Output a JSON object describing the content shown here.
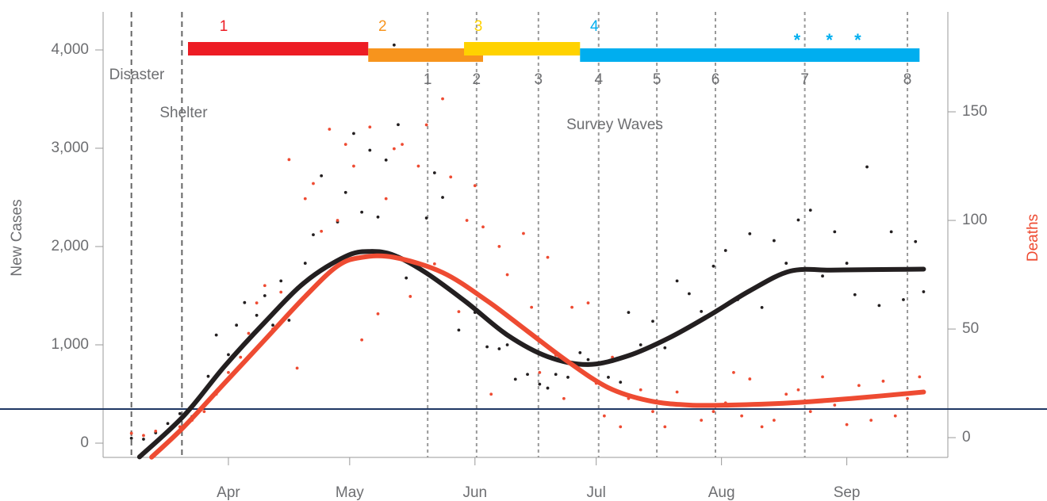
{
  "chart_data": {
    "type": "scatter",
    "ylabel": "New Cases",
    "y2label": "Deaths",
    "y2label_color": "#ee4b32",
    "xlim": [
      0,
      209
    ],
    "xticks": [
      {
        "value": 31,
        "label": "Apr"
      },
      {
        "value": 61,
        "label": "May"
      },
      {
        "value": 92,
        "label": "Jun"
      },
      {
        "value": 122,
        "label": "Jul"
      },
      {
        "value": 153,
        "label": "Aug"
      },
      {
        "value": 184,
        "label": "Sep"
      }
    ],
    "ylim": [
      -145,
      4387
    ],
    "yticks": [
      0,
      {
        "value": 1000,
        "label": "1,000"
      },
      {
        "value": 2000,
        "label": "2,000"
      },
      {
        "value": 3000,
        "label": "3,000"
      },
      {
        "value": 4000,
        "label": "4,000"
      }
    ],
    "y2lim": [
      -9.1,
      196
    ],
    "y2ticks": [
      0,
      50,
      100,
      150
    ],
    "hline": {
      "value": 347,
      "color": "#1f3864"
    },
    "events": [
      {
        "label": "Disaster",
        "x": 7
      },
      {
        "label": "Shelter",
        "x": 19.5
      }
    ],
    "waves_title": "Survey Waves",
    "waves": [
      {
        "label": "1",
        "x": 80.3
      },
      {
        "label": "2",
        "x": 92.4
      },
      {
        "label": "3",
        "x": 107.7
      },
      {
        "label": "4",
        "x": 122.6
      },
      {
        "label": "5",
        "x": 137
      },
      {
        "label": "6",
        "x": 151.5
      },
      {
        "label": "7",
        "x": 173.6
      },
      {
        "label": "8",
        "x": 199
      }
    ],
    "periods": [
      {
        "label": "1",
        "start": 21,
        "end": 65.6,
        "color": "#ed1c24"
      },
      {
        "label": "2",
        "start": 65.6,
        "end": 94,
        "color": "#f7941d"
      },
      {
        "label": "3",
        "start": 89.3,
        "end": 118,
        "color": "#ffd200"
      },
      {
        "label": "4",
        "start": 118,
        "end": 202,
        "color": "#00aeef"
      }
    ],
    "markers": {
      "label": "*",
      "color": "#00aeef",
      "x": [
        171.7,
        179.7,
        186.7
      ]
    },
    "series": [
      {
        "marker": "dot",
        "axis": "y",
        "color": "#231f20",
        "x": [
          7,
          10,
          13,
          16,
          19,
          22,
          24,
          26,
          28,
          31,
          33,
          35,
          38,
          40,
          42,
          44,
          46,
          48,
          50,
          52,
          54,
          56,
          58,
          60,
          62,
          64,
          66,
          68,
          70,
          72,
          73,
          75,
          78,
          80,
          82,
          84,
          86,
          88,
          90,
          92,
          95,
          98,
          100,
          102,
          105,
          108,
          110,
          112,
          115,
          118,
          120,
          122,
          125,
          128,
          130,
          133,
          136,
          139,
          142,
          145,
          148,
          151,
          154,
          157,
          160,
          163,
          166,
          169,
          172,
          175,
          178,
          181,
          184,
          186,
          189,
          192,
          195,
          198,
          201,
          203
        ],
        "values": [
          50,
          40,
          105,
          200,
          300,
          270,
          470,
          680,
          1100,
          900,
          1200,
          1430,
          1300,
          1500,
          1200,
          1650,
          1250,
          1580,
          1830,
          2120,
          2720,
          1800,
          2250,
          2550,
          3150,
          2350,
          2980,
          2300,
          2880,
          4050,
          3240,
          1680,
          1820,
          2290,
          2750,
          2500,
          1700,
          1150,
          1600,
          1330,
          980,
          960,
          1000,
          650,
          700,
          600,
          560,
          700,
          670,
          920,
          850,
          810,
          670,
          620,
          1330,
          1000,
          1240,
          970,
          1650,
          1520,
          1340,
          1800,
          1960,
          1460,
          2130,
          1380,
          2060,
          1830,
          2270,
          2370,
          1700,
          2150,
          1830,
          1510,
          2810,
          1400,
          2150,
          1460,
          2050,
          1540
        ]
      },
      {
        "marker": "dot",
        "axis": "y2",
        "color": "#ee4b32",
        "x": [
          7,
          10,
          13,
          16,
          19,
          22,
          25,
          28,
          31,
          34,
          36,
          38,
          40,
          42,
          44,
          46,
          48,
          50,
          52,
          54,
          56,
          58,
          60,
          62,
          64,
          66,
          68,
          70,
          72,
          74,
          76,
          78,
          80,
          82,
          84,
          86,
          88,
          90,
          92,
          94,
          96,
          98,
          100,
          102,
          104,
          106,
          108,
          110,
          112,
          114,
          116,
          118,
          120,
          122,
          124,
          126,
          128,
          130,
          133,
          136,
          139,
          142,
          145,
          148,
          151,
          154,
          156,
          158,
          160,
          163,
          166,
          169,
          172,
          175,
          178,
          181,
          184,
          187,
          190,
          193,
          196,
          199,
          202
        ],
        "values": [
          2,
          1,
          3,
          3,
          5,
          8,
          12,
          20,
          30,
          37,
          48,
          62,
          70,
          50,
          67,
          128,
          32,
          110,
          117,
          95,
          142,
          100,
          135,
          125,
          45,
          143,
          57,
          110,
          133,
          135,
          65,
          125,
          144,
          80,
          156,
          120,
          58,
          100,
          116,
          97,
          20,
          88,
          75,
          45,
          94,
          60,
          30,
          83,
          38,
          18,
          60,
          34,
          62,
          25,
          10,
          37,
          5,
          18,
          22,
          12,
          5,
          21,
          15,
          8,
          12,
          16,
          30,
          10,
          27,
          5,
          8,
          20,
          22,
          12,
          28,
          15,
          6,
          24,
          8,
          26,
          10,
          18,
          28
        ]
      },
      {
        "marker": "line",
        "axis": "y",
        "color": "#231f20",
        "x": [
          9,
          20,
          30,
          40,
          50,
          60,
          66,
          72,
          80,
          90,
          100,
          110,
          120,
          130,
          140,
          150,
          160,
          170,
          180,
          190,
          203
        ],
        "values": [
          -140,
          280,
          780,
          1230,
          1640,
          1900,
          1950,
          1910,
          1730,
          1430,
          1100,
          880,
          800,
          890,
          1070,
          1300,
          1550,
          1750,
          1760,
          1765,
          1770
        ]
      },
      {
        "marker": "line",
        "axis": "y2",
        "color": "#ee4b32",
        "x": [
          12,
          20,
          30,
          40,
          50,
          58,
          64,
          72,
          84,
          95,
          105,
          115,
          125,
          135,
          145,
          155,
          170,
          185,
          203
        ],
        "values": [
          -9,
          5,
          25,
          45,
          65,
          79,
          83,
          83,
          76,
          63,
          49,
          35,
          23,
          17,
          15,
          15,
          16,
          18,
          21
        ]
      }
    ]
  }
}
